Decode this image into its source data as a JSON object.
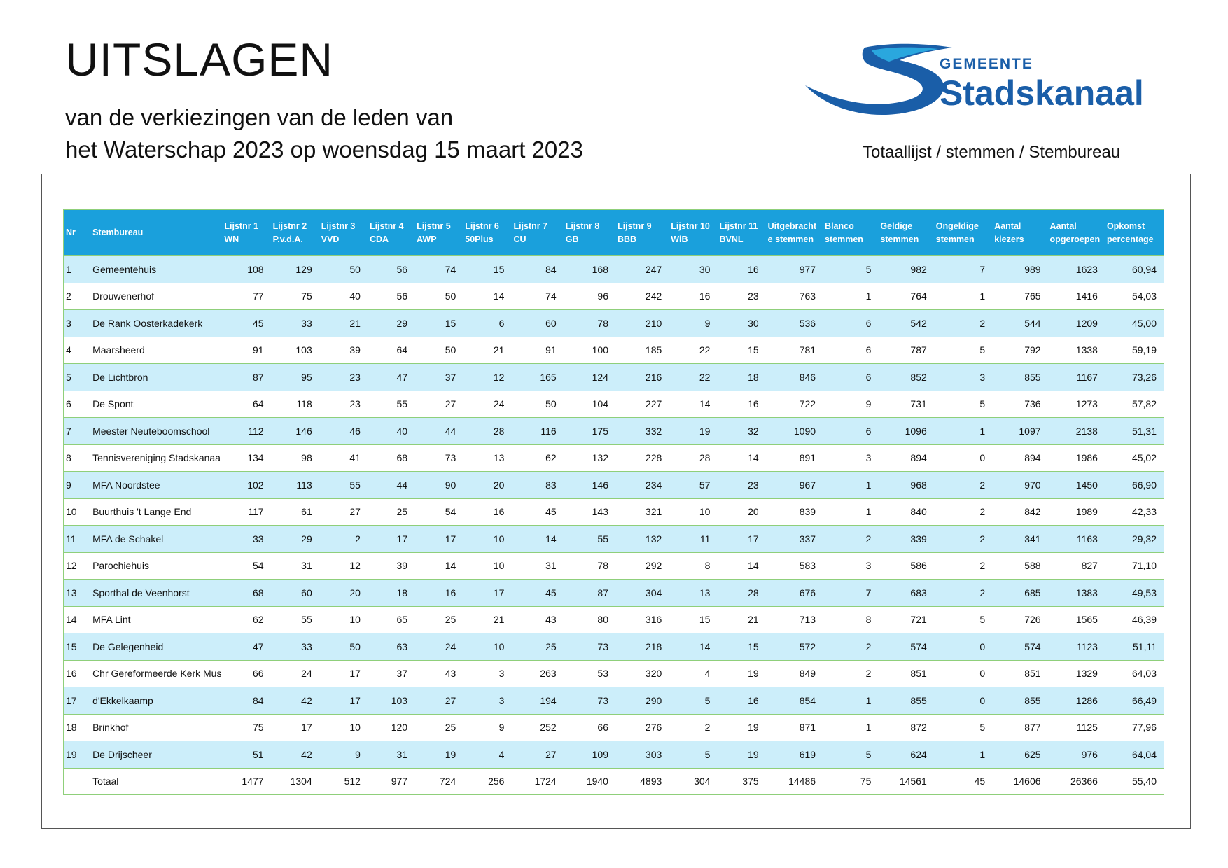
{
  "header": {
    "title": "UITSLAGEN",
    "subtitle_line1": "van de verkiezingen van de leden van",
    "subtitle_line2": "het Waterschap 2023 op woensdag 15 maart 2023",
    "doc_type": "Totaallijst  / stemmen / Stembureau"
  },
  "logo": {
    "small": "GEMEENTE",
    "big": "Stadskanaal",
    "color": "#1a5ea8"
  },
  "colors": {
    "header_bg": "#1aa0dc",
    "row_alt": "#cceefa",
    "border": "#8fcf7a"
  },
  "table": {
    "columns": [
      "Nr",
      "Stembureau",
      "Lijstnr 1\nWN",
      "Lijstnr 2\nP.v.d.A.",
      "Lijstnr 3\nVVD",
      "Lijstnr 4\nCDA",
      "Lijstnr 5\nAWP",
      "Lijstnr 6\n50Plus",
      "Lijstnr 7 CU",
      "Lijstnr 8 GB",
      "Lijstnr 9\nBBB",
      "Lijstnr 10\nWiB",
      "Lijstnr 11\nBVNL",
      "Uitgebracht\ne stemmen",
      "Blanco\nstemmen",
      "Geldige\nstemmen",
      "Ongeldige\nstemmen",
      "Aantal\nkiezers",
      "Aantal\nopgeroepen",
      "Opkomst\npercentage"
    ],
    "rows": [
      [
        "1",
        "Gemeentehuis",
        "108",
        "129",
        "50",
        "56",
        "74",
        "15",
        "84",
        "168",
        "247",
        "30",
        "16",
        "977",
        "5",
        "982",
        "7",
        "989",
        "1623",
        "60,94"
      ],
      [
        "2",
        "Drouwenerhof",
        "77",
        "75",
        "40",
        "56",
        "50",
        "14",
        "74",
        "96",
        "242",
        "16",
        "23",
        "763",
        "1",
        "764",
        "1",
        "765",
        "1416",
        "54,03"
      ],
      [
        "3",
        "De Rank Oosterkadekerk",
        "45",
        "33",
        "21",
        "29",
        "15",
        "6",
        "60",
        "78",
        "210",
        "9",
        "30",
        "536",
        "6",
        "542",
        "2",
        "544",
        "1209",
        "45,00"
      ],
      [
        "4",
        "Maarsheerd",
        "91",
        "103",
        "39",
        "64",
        "50",
        "21",
        "91",
        "100",
        "185",
        "22",
        "15",
        "781",
        "6",
        "787",
        "5",
        "792",
        "1338",
        "59,19"
      ],
      [
        "5",
        "De Lichtbron",
        "87",
        "95",
        "23",
        "47",
        "37",
        "12",
        "165",
        "124",
        "216",
        "22",
        "18",
        "846",
        "6",
        "852",
        "3",
        "855",
        "1167",
        "73,26"
      ],
      [
        "6",
        "De Spont",
        "64",
        "118",
        "23",
        "55",
        "27",
        "24",
        "50",
        "104",
        "227",
        "14",
        "16",
        "722",
        "9",
        "731",
        "5",
        "736",
        "1273",
        "57,82"
      ],
      [
        "7",
        "Meester Neuteboomschool",
        "112",
        "146",
        "46",
        "40",
        "44",
        "28",
        "116",
        "175",
        "332",
        "19",
        "32",
        "1090",
        "6",
        "1096",
        "1",
        "1097",
        "2138",
        "51,31"
      ],
      [
        "8",
        "Tennisvereniging Stadskanaa",
        "134",
        "98",
        "41",
        "68",
        "73",
        "13",
        "62",
        "132",
        "228",
        "28",
        "14",
        "891",
        "3",
        "894",
        "0",
        "894",
        "1986",
        "45,02"
      ],
      [
        "9",
        "MFA Noordstee",
        "102",
        "113",
        "55",
        "44",
        "90",
        "20",
        "83",
        "146",
        "234",
        "57",
        "23",
        "967",
        "1",
        "968",
        "2",
        "970",
        "1450",
        "66,90"
      ],
      [
        "10",
        "Buurthuis 't Lange End",
        "117",
        "61",
        "27",
        "25",
        "54",
        "16",
        "45",
        "143",
        "321",
        "10",
        "20",
        "839",
        "1",
        "840",
        "2",
        "842",
        "1989",
        "42,33"
      ],
      [
        "11",
        "MFA de Schakel",
        "33",
        "29",
        "2",
        "17",
        "17",
        "10",
        "14",
        "55",
        "132",
        "11",
        "17",
        "337",
        "2",
        "339",
        "2",
        "341",
        "1163",
        "29,32"
      ],
      [
        "12",
        "Parochiehuis",
        "54",
        "31",
        "12",
        "39",
        "14",
        "10",
        "31",
        "78",
        "292",
        "8",
        "14",
        "583",
        "3",
        "586",
        "2",
        "588",
        "827",
        "71,10"
      ],
      [
        "13",
        "Sporthal de Veenhorst",
        "68",
        "60",
        "20",
        "18",
        "16",
        "17",
        "45",
        "87",
        "304",
        "13",
        "28",
        "676",
        "7",
        "683",
        "2",
        "685",
        "1383",
        "49,53"
      ],
      [
        "14",
        "MFA Lint",
        "62",
        "55",
        "10",
        "65",
        "25",
        "21",
        "43",
        "80",
        "316",
        "15",
        "21",
        "713",
        "8",
        "721",
        "5",
        "726",
        "1565",
        "46,39"
      ],
      [
        "15",
        "De Gelegenheid",
        "47",
        "33",
        "50",
        "63",
        "24",
        "10",
        "25",
        "73",
        "218",
        "14",
        "15",
        "572",
        "2",
        "574",
        "0",
        "574",
        "1123",
        "51,11"
      ],
      [
        "16",
        "Chr Gereformeerde Kerk Mus",
        "66",
        "24",
        "17",
        "37",
        "43",
        "3",
        "263",
        "53",
        "320",
        "4",
        "19",
        "849",
        "2",
        "851",
        "0",
        "851",
        "1329",
        "64,03"
      ],
      [
        "17",
        "d'Ekkelkaamp",
        "84",
        "42",
        "17",
        "103",
        "27",
        "3",
        "194",
        "73",
        "290",
        "5",
        "16",
        "854",
        "1",
        "855",
        "0",
        "855",
        "1286",
        "66,49"
      ],
      [
        "18",
        "Brinkhof",
        "75",
        "17",
        "10",
        "120",
        "25",
        "9",
        "252",
        "66",
        "276",
        "2",
        "19",
        "871",
        "1",
        "872",
        "5",
        "877",
        "1125",
        "77,96"
      ],
      [
        "19",
        "De Drijscheer",
        "51",
        "42",
        "9",
        "31",
        "19",
        "4",
        "27",
        "109",
        "303",
        "5",
        "19",
        "619",
        "5",
        "624",
        "1",
        "625",
        "976",
        "64,04"
      ]
    ],
    "total": [
      "",
      "Totaal",
      "1477",
      "1304",
      "512",
      "977",
      "724",
      "256",
      "1724",
      "1940",
      "4893",
      "304",
      "375",
      "14486",
      "75",
      "14561",
      "45",
      "14606",
      "26366",
      "55,40"
    ]
  }
}
